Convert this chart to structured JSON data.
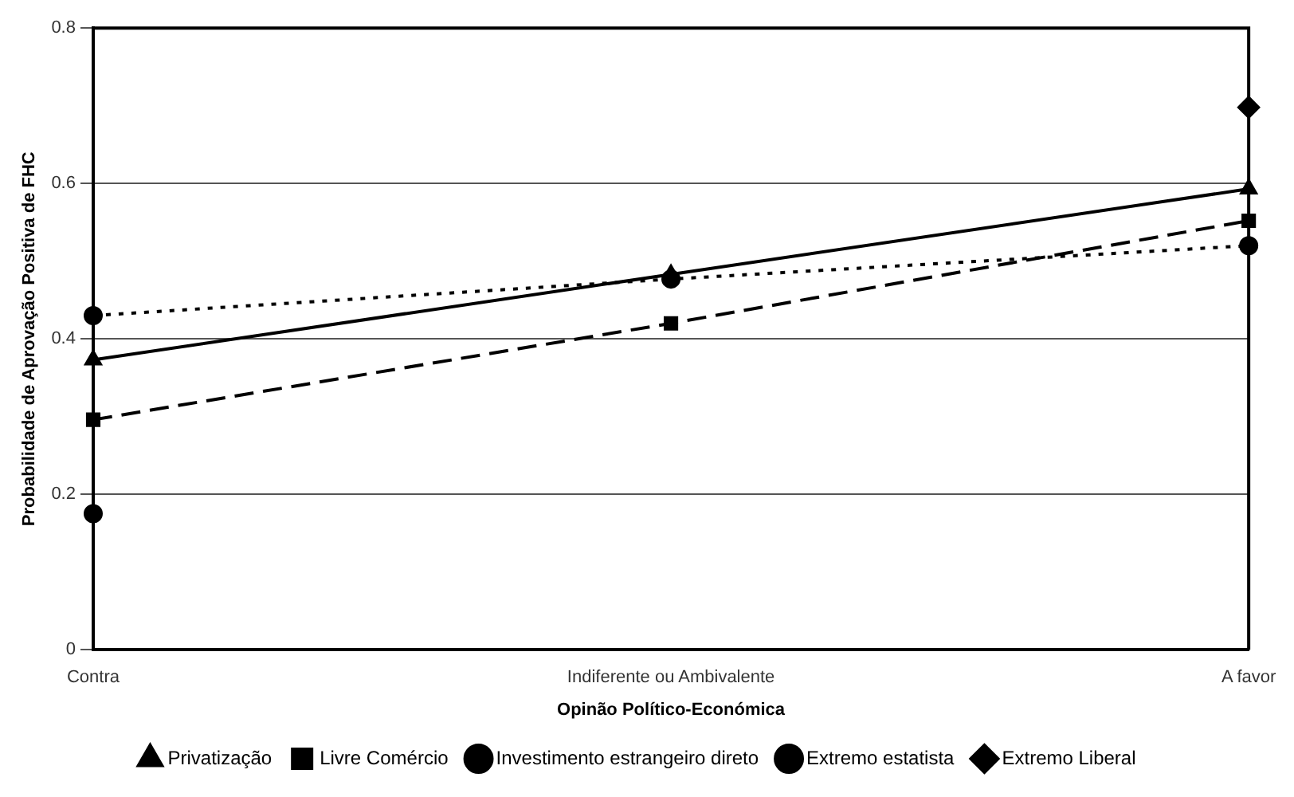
{
  "chart_data": {
    "type": "line",
    "xlabel": "Opinão Político-Económica",
    "ylabel": "Probabilidade de Aprovação Positiva de FHC",
    "categories": [
      "Contra",
      "Indiferente ou Ambivalente",
      "A favor"
    ],
    "series": [
      {
        "name": "Privatização",
        "color": "#000000",
        "values": [
          0.373,
          0.483,
          0.593
        ],
        "marker": "triangle",
        "line_style": "solid"
      },
      {
        "name": "Livre Comércio",
        "color": "#000000",
        "values": [
          0.296,
          0.42,
          0.552
        ],
        "marker": "square",
        "line_style": "dashed"
      },
      {
        "name": "Investimento estrangeiro direto",
        "color": "#000000",
        "values": [
          0.43,
          0.477,
          0.52
        ],
        "marker": "circle",
        "line_style": "dotted"
      },
      {
        "name": "Extremo estatista",
        "type": "scatter",
        "color": "#000000",
        "values": [
          0.175,
          null,
          null
        ],
        "marker": "circle"
      },
      {
        "name": "Extremo Liberal",
        "type": "scatter",
        "color": "#000000",
        "values": [
          null,
          null,
          0.698
        ],
        "marker": "diamond"
      }
    ],
    "ylim": [
      0,
      0.8
    ],
    "yticks": [
      0,
      0.2,
      0.4,
      0.6,
      0.8
    ],
    "grid": "y",
    "legend": "bottom"
  }
}
